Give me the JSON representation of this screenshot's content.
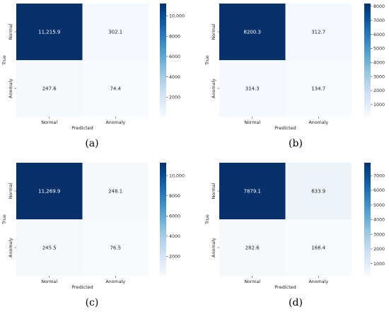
{
  "chart_data": [
    {
      "type": "heatmap",
      "caption": "(a)",
      "xlabel": "Predicted",
      "ylabel": "True",
      "x_categories": [
        "Normal",
        "Anomaly"
      ],
      "y_categories": [
        "Normal",
        "Anomaly"
      ],
      "values": [
        [
          11215.9,
          302.1
        ],
        [
          247.6,
          74.4
        ]
      ],
      "labels": [
        [
          "11,215.9",
          "302.1"
        ],
        [
          "247.6",
          "74.4"
        ]
      ],
      "colorbar": {
        "range": [
          74.4,
          11215.9
        ],
        "ticks": [
          2000,
          4000,
          6000,
          8000,
          10000
        ],
        "tick_labels": [
          "2000",
          "4000",
          "6000",
          "8000",
          "10,000"
        ]
      }
    },
    {
      "type": "heatmap",
      "caption": "(b)",
      "xlabel": "Predicted",
      "ylabel": "True",
      "x_categories": [
        "Normal",
        "Anomaly"
      ],
      "y_categories": [
        "Normal",
        "Anomaly"
      ],
      "values": [
        [
          8200.3,
          312.7
        ],
        [
          314.3,
          134.7
        ]
      ],
      "labels": [
        [
          "8200.3",
          "312.7"
        ],
        [
          "314.3",
          "134.7"
        ]
      ],
      "colorbar": {
        "range": [
          134.7,
          8200.3
        ],
        "ticks": [
          1000,
          2000,
          3000,
          4000,
          5000,
          6000,
          7000,
          8000
        ],
        "tick_labels": [
          "1000",
          "2000",
          "3000",
          "4000",
          "5000",
          "6000",
          "7000",
          "8000"
        ]
      }
    },
    {
      "type": "heatmap",
      "caption": "(c)",
      "xlabel": "Predicted",
      "ylabel": "True",
      "x_categories": [
        "Normal",
        "Anomaly"
      ],
      "y_categories": [
        "Normal",
        "Anomaly"
      ],
      "values": [
        [
          11269.9,
          248.1
        ],
        [
          245.5,
          76.5
        ]
      ],
      "labels": [
        [
          "11,269.9",
          "248.1"
        ],
        [
          "245.5",
          "76.5"
        ]
      ],
      "colorbar": {
        "range": [
          76.5,
          11269.9
        ],
        "ticks": [
          2000,
          4000,
          6000,
          8000,
          10000
        ],
        "tick_labels": [
          "2000",
          "4000",
          "6000",
          "8000",
          "10,000"
        ]
      }
    },
    {
      "type": "heatmap",
      "caption": "(d)",
      "xlabel": "Predicted",
      "ylabel": "True",
      "x_categories": [
        "Normal",
        "Anomaly"
      ],
      "y_categories": [
        "Normal",
        "Anomaly"
      ],
      "values": [
        [
          7879.1,
          633.9
        ],
        [
          282.6,
          166.4
        ]
      ],
      "labels": [
        [
          "7879.1",
          "633.9"
        ],
        [
          "282.6",
          "166.4"
        ]
      ],
      "colorbar": {
        "range": [
          166.4,
          7879.1
        ],
        "ticks": [
          1000,
          2000,
          3000,
          4000,
          5000,
          6000,
          7000
        ],
        "tick_labels": [
          "1000",
          "2000",
          "3000",
          "4000",
          "5000",
          "6000",
          "7000"
        ]
      }
    }
  ],
  "colors": {
    "colormap": "Blues",
    "low": "#f7fbff",
    "high": "#08306b",
    "text_dark_bg": "#ffffff",
    "text_light_bg": "#262626"
  }
}
